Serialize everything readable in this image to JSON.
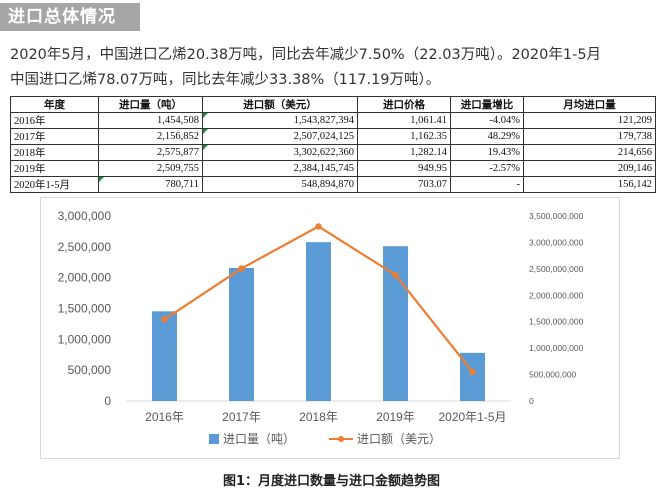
{
  "header": {
    "title": "进口总体情况"
  },
  "intro": {
    "line1": "2020年5月，中国进口乙烯20.38万吨，同比去年减少7.50%（22.03万吨）。2020年1-5月",
    "line2": "中国进口乙烯78.07万吨，同比去年减少33.38%（117.19万吨）。"
  },
  "table": {
    "headers": [
      "年度",
      "进口量（吨）",
      "进口额（美元）",
      "进口价格",
      "进口量增比",
      "月均进口量"
    ],
    "rows": [
      [
        "2016年",
        "1,454,508",
        "1,543,827,394",
        "1,061.41",
        "-4.04%",
        "121,209"
      ],
      [
        "2017年",
        "2,156,852",
        "2,507,024,125",
        "1,162.35",
        "48.29%",
        "179,738"
      ],
      [
        "2018年",
        "2,575,877",
        "3,302,622,360",
        "1,282.14",
        "19.43%",
        "214,656"
      ],
      [
        "2019年",
        "2,509,755",
        "2,384,145,745",
        "949.95",
        "-2.57%",
        "209,146"
      ],
      [
        "2020年1-5月",
        "780,711",
        "548,894,870",
        "703.07",
        "-",
        "156,142"
      ]
    ]
  },
  "chart_data": {
    "type": "bar",
    "categories": [
      "2016年",
      "2017年",
      "2018年",
      "2019年",
      "2020年1-5月"
    ],
    "series": [
      {
        "name": "进口量（吨）",
        "type": "bar",
        "axis": "left",
        "color": "#5b9bd5",
        "values": [
          1454508,
          2156852,
          2575877,
          2509755,
          780711
        ]
      },
      {
        "name": "进口额（美元）",
        "type": "line",
        "axis": "right",
        "color": "#ed7d31",
        "values": [
          1543827394,
          2507024125,
          3302622360,
          2384145745,
          548894870
        ]
      }
    ],
    "y_left": {
      "ylim": [
        0,
        3000000
      ],
      "ticks": [
        "0",
        "500,000",
        "1,000,000",
        "1,500,000",
        "2,000,000",
        "2,500,000",
        "3,000,000"
      ]
    },
    "y_right": {
      "ylim": [
        0,
        3500000000
      ],
      "ticks": [
        "0",
        "500,000,000",
        "1,000,000,000",
        "1,500,000,000",
        "2,000,000,000",
        "2,500,000,000",
        "3,000,000,000",
        "3,500,000,000"
      ]
    },
    "grid": false,
    "legend": "bottom"
  },
  "caption": "图1：月度进口数量与进口金额趋势图"
}
